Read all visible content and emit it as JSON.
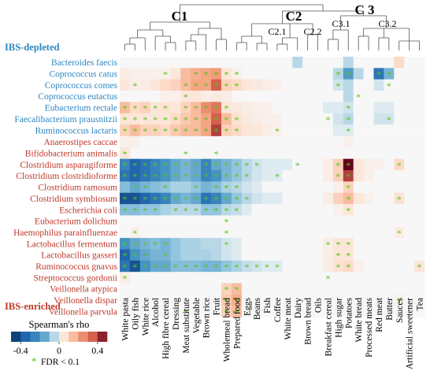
{
  "chart_data": {
    "type": "heatmap",
    "title": "",
    "legend_title": "Spearman's rho",
    "colorbar_ticks": [
      "-0.4",
      "0",
      "0.4"
    ],
    "colorbar_range": [
      -0.5,
      0.5
    ],
    "significance_note": "FDR < 0.1",
    "significance_marker": "*",
    "group_labels": {
      "depleted": "IBS-depleted",
      "enriched": "IBS-enriched"
    },
    "cluster_labels": [
      "C1",
      "C2",
      "C2.1",
      "C2.2",
      "C 3",
      "C3.1",
      "C3.2"
    ],
    "columns": [
      "White pasta",
      "Oily fish",
      "White rice",
      "Alcohol",
      "High fibre cereal",
      "Dressing",
      "Meat substitute",
      "Vegetable",
      "Brown rice",
      "Fruit",
      "Wholemeal bread",
      "Prepared food",
      "Eggs",
      "Beans",
      "Fish",
      "Coffee",
      "White meat",
      "Dairy",
      "Brown bread",
      "Oils",
      "Breakfast cereal",
      "High sugar",
      "Potatoes",
      "White bread",
      "Processed meats",
      "Red meat",
      "Butter",
      "Sauces",
      "Artificial sweetener",
      "Tea"
    ],
    "rows": [
      {
        "name": "Bacteroides faecis",
        "group": "depleted",
        "values": [
          0,
          0,
          0,
          0,
          0,
          0,
          0,
          0,
          0,
          0,
          0,
          0,
          0,
          0,
          0,
          0,
          0,
          -0.05,
          0,
          0,
          0,
          0,
          -0.05,
          0,
          0,
          0,
          0,
          0.08,
          0,
          0
        ],
        "sig": []
      },
      {
        "name": "Coprococcus catus",
        "group": "depleted",
        "values": [
          0.03,
          0.02,
          0.02,
          0.02,
          0.02,
          0.05,
          0.15,
          0.18,
          0.2,
          0.22,
          0.05,
          0.02,
          0,
          0,
          0,
          0,
          0,
          0,
          0,
          0,
          0,
          -0.05,
          -0.18,
          -0.05,
          0,
          -0.3,
          -0.12,
          0,
          0,
          0
        ],
        "sig": [
          4,
          7,
          8,
          9,
          10,
          11,
          21,
          22,
          25,
          26
        ]
      },
      {
        "name": "Coprococcus comes",
        "group": "depleted",
        "values": [
          0.05,
          0.03,
          0.03,
          0.05,
          0.08,
          0.1,
          0.15,
          0.2,
          0.2,
          0.35,
          0.1,
          0.08,
          0.05,
          0.04,
          0.03,
          0.02,
          0,
          0,
          0,
          0,
          0,
          -0.03,
          -0.05,
          0,
          0,
          -0.03,
          0,
          0,
          0,
          0
        ],
        "sig": [
          1,
          6,
          7,
          8,
          9,
          10,
          11,
          21,
          26
        ]
      },
      {
        "name": "Coprococcus eutactus",
        "group": "depleted",
        "values": [
          0,
          0,
          0,
          0,
          0.02,
          0.02,
          0.05,
          0.05,
          0.03,
          0.04,
          0.03,
          0,
          0,
          0,
          0,
          0,
          0,
          0,
          0,
          0,
          0,
          0,
          -0.05,
          0,
          0,
          0,
          0,
          0,
          0,
          0
        ],
        "sig": [
          6,
          23
        ]
      },
      {
        "name": "Eubacterium rectale",
        "group": "depleted",
        "values": [
          0.15,
          0.08,
          0.1,
          0.05,
          0.06,
          0.05,
          0.1,
          0.15,
          0.25,
          0.3,
          0.05,
          0.04,
          0.03,
          0.02,
          0.02,
          0,
          0,
          0,
          0,
          0,
          -0.02,
          -0.02,
          -0.03,
          0,
          0,
          -0.02,
          -0.02,
          0,
          0,
          0
        ],
        "sig": [
          0,
          1,
          2,
          3,
          4,
          6,
          7,
          8,
          9,
          10,
          22
        ]
      },
      {
        "name": "Faecalibacterium prausnitzii",
        "group": "depleted",
        "values": [
          0.05,
          0.05,
          0.05,
          0.05,
          0.05,
          0.08,
          0.12,
          0.15,
          0.2,
          0.35,
          0.15,
          0.06,
          0.04,
          0.03,
          0.02,
          0.02,
          0,
          0,
          0,
          0,
          0,
          -0.03,
          -0.05,
          0,
          0,
          -0.03,
          -0.03,
          0,
          0,
          0
        ],
        "sig": [
          0,
          1,
          2,
          3,
          4,
          5,
          6,
          7,
          8,
          9,
          10,
          11,
          20,
          22,
          26
        ]
      },
      {
        "name": "Ruminococcus lactaris",
        "group": "depleted",
        "values": [
          0.1,
          0.15,
          0.1,
          0.1,
          0.08,
          0.12,
          0.15,
          0.15,
          0.2,
          0.4,
          0.1,
          0.08,
          0.05,
          0.05,
          0.03,
          0.02,
          0,
          0,
          0,
          0,
          0,
          -0.02,
          -0.02,
          0,
          0,
          0,
          0,
          0,
          0,
          0
        ],
        "sig": [
          0,
          1,
          2,
          3,
          4,
          5,
          6,
          7,
          8,
          9,
          10,
          11,
          15,
          22
        ]
      },
      {
        "name": "Anaerostipes caccae",
        "group": "enriched",
        "values": [
          0.02,
          0.02,
          0,
          0,
          0,
          0,
          0,
          0,
          0,
          0,
          0,
          0,
          0,
          0,
          0,
          0,
          0,
          0,
          0,
          0,
          0,
          0,
          0.02,
          0,
          0,
          0,
          0,
          0,
          0,
          0
        ],
        "sig": []
      },
      {
        "name": "Bifidobacterium animalis",
        "group": "enriched",
        "values": [
          0.05,
          0,
          0,
          0,
          0,
          0,
          0,
          0,
          0,
          0,
          0,
          0,
          0,
          0,
          0,
          0,
          0,
          0,
          0,
          0,
          0,
          0,
          0,
          0,
          0,
          0,
          0,
          0,
          0,
          0
        ],
        "sig": [
          0,
          6,
          9
        ]
      },
      {
        "name": "Clostridium asparagiforme",
        "group": "enriched",
        "values": [
          -0.25,
          -0.35,
          -0.3,
          -0.25,
          -0.2,
          -0.15,
          -0.12,
          -0.15,
          -0.25,
          -0.15,
          -0.12,
          -0.08,
          -0.05,
          -0.03,
          -0.02,
          -0.02,
          -0.02,
          0,
          0,
          0,
          0.03,
          0.1,
          0.5,
          0.05,
          0.02,
          0.02,
          0,
          0.08,
          0,
          0
        ],
        "sig": [
          0,
          1,
          2,
          3,
          4,
          5,
          6,
          7,
          8,
          9,
          10,
          11,
          12,
          13,
          17,
          21,
          22,
          27
        ]
      },
      {
        "name": "Clostridium clostridioforme",
        "group": "enriched",
        "values": [
          -0.3,
          -0.35,
          -0.3,
          -0.25,
          -0.2,
          -0.15,
          -0.12,
          -0.15,
          -0.25,
          -0.2,
          -0.12,
          -0.08,
          -0.05,
          -0.03,
          -0.02,
          -0.02,
          0,
          0,
          0,
          0,
          0.03,
          0.1,
          0.4,
          0.05,
          0.02,
          0,
          0,
          0,
          0,
          0
        ],
        "sig": [
          0,
          1,
          2,
          3,
          4,
          5,
          6,
          7,
          8,
          9,
          10,
          11,
          12,
          15,
          21,
          22
        ]
      },
      {
        "name": "Clostridium ramosum",
        "group": "enriched",
        "values": [
          -0.1,
          -0.15,
          -0.12,
          -0.1,
          -0.08,
          -0.06,
          -0.06,
          -0.08,
          -0.12,
          -0.1,
          -0.06,
          -0.05,
          -0.03,
          -0.02,
          0,
          0,
          0,
          0,
          0,
          0,
          0,
          0.02,
          0.1,
          0,
          0,
          0,
          0,
          0,
          0,
          0
        ],
        "sig": [
          1,
          2,
          4,
          7,
          9,
          10,
          11,
          22
        ]
      },
      {
        "name": "Clostridium symbiosum",
        "group": "enriched",
        "values": [
          -0.4,
          -0.4,
          -0.35,
          -0.3,
          -0.25,
          -0.15,
          -0.12,
          -0.15,
          -0.3,
          -0.25,
          -0.15,
          -0.08,
          -0.05,
          -0.03,
          -0.02,
          -0.02,
          0,
          0,
          0,
          0,
          0.03,
          0.1,
          0.15,
          0.05,
          0.02,
          0,
          0,
          0.06,
          0,
          0
        ],
        "sig": [
          0,
          1,
          2,
          3,
          4,
          5,
          6,
          7,
          8,
          9,
          10,
          11,
          12,
          22,
          27
        ]
      },
      {
        "name": "Escherichia coli",
        "group": "enriched",
        "values": [
          -0.1,
          -0.1,
          -0.08,
          -0.08,
          -0.06,
          -0.05,
          -0.05,
          -0.05,
          -0.08,
          -0.08,
          -0.05,
          -0.04,
          -0.02,
          0,
          0,
          0,
          0,
          0,
          0,
          0,
          0,
          0.02,
          0.05,
          0,
          0,
          0,
          0,
          0,
          0,
          0
        ],
        "sig": [
          0,
          1,
          2,
          3,
          5,
          6,
          7,
          8,
          9,
          10,
          11,
          22
        ]
      },
      {
        "name": "Eubacterium dolichum",
        "group": "enriched",
        "values": [
          0,
          0,
          0,
          0,
          0,
          0,
          0,
          0,
          0,
          0,
          0,
          0,
          0,
          0,
          0,
          0,
          0,
          0,
          0,
          0,
          0,
          0,
          0,
          0,
          0,
          0,
          0,
          0,
          0,
          0
        ],
        "sig": [
          10
        ]
      },
      {
        "name": "Haemophilus parainfluenzae",
        "group": "enriched",
        "values": [
          0,
          0.02,
          0,
          0,
          0,
          0,
          0,
          0,
          0,
          0,
          0,
          0,
          0,
          0,
          0,
          0,
          0,
          0,
          0,
          0,
          0,
          0,
          0,
          0,
          0,
          0,
          0,
          0.03,
          0,
          0
        ],
        "sig": [
          1,
          10,
          27
        ]
      },
      {
        "name": "Lactobacillus fermentum",
        "group": "enriched",
        "values": [
          -0.2,
          -0.15,
          -0.12,
          -0.1,
          -0.12,
          -0.08,
          -0.06,
          -0.06,
          -0.05,
          -0.05,
          -0.03,
          -0.02,
          0,
          0,
          0,
          0,
          0,
          0,
          0,
          0,
          0.03,
          0.05,
          0.05,
          0,
          0,
          0,
          0,
          0,
          0,
          0
        ],
        "sig": [
          0,
          1,
          2,
          3,
          4,
          10,
          20,
          21,
          22
        ]
      },
      {
        "name": "Lactobacillus gasseri",
        "group": "enriched",
        "values": [
          -0.35,
          -0.2,
          -0.15,
          -0.12,
          -0.12,
          -0.08,
          -0.06,
          -0.06,
          -0.06,
          -0.05,
          -0.03,
          -0.02,
          0,
          0,
          0,
          0,
          0,
          0,
          0,
          0,
          0.03,
          0.05,
          0.05,
          0,
          0,
          0,
          0,
          0,
          0,
          0
        ],
        "sig": [
          0,
          1,
          2,
          4,
          21,
          22
        ]
      },
      {
        "name": "Ruminococcus gnavus",
        "group": "enriched",
        "values": [
          -0.3,
          -0.4,
          -0.2,
          -0.15,
          -0.15,
          -0.1,
          -0.1,
          -0.1,
          -0.12,
          -0.12,
          -0.08,
          -0.06,
          -0.04,
          -0.03,
          -0.02,
          -0.02,
          0,
          0,
          0,
          0,
          0.03,
          0.06,
          0.08,
          0.02,
          0,
          0,
          0,
          0,
          0,
          0.05
        ],
        "sig": [
          0,
          1,
          2,
          3,
          4,
          5,
          6,
          7,
          8,
          9,
          10,
          11,
          12,
          13,
          14,
          15,
          21,
          22,
          29
        ]
      },
      {
        "name": "Streptococcus gordonii",
        "group": "enriched",
        "values": [
          0.03,
          0,
          0,
          0,
          0,
          0,
          0,
          0,
          0,
          0,
          0,
          0,
          0,
          0,
          0,
          0,
          0,
          0,
          0,
          0,
          0,
          0,
          0,
          0,
          0,
          0,
          0,
          0,
          0,
          0
        ],
        "sig": [
          0,
          20
        ]
      },
      {
        "name": "Veillonella atypica",
        "group": "enriched",
        "values": [
          0,
          0,
          0,
          0,
          0,
          0,
          0,
          0,
          0,
          0,
          0.1,
          0.15,
          0,
          0,
          0,
          0,
          0,
          0,
          0,
          0,
          0,
          0,
          0,
          0,
          0,
          0,
          0,
          0,
          0,
          0
        ],
        "sig": [
          10,
          11
        ]
      },
      {
        "name": "Veillonella dispar",
        "group": "enriched",
        "values": [
          0,
          0,
          0,
          0,
          0,
          0,
          0,
          0,
          0,
          0,
          0.12,
          0.18,
          0,
          0,
          0,
          0,
          0,
          0,
          0,
          0,
          0,
          0,
          0,
          0,
          0,
          0,
          0,
          0.02,
          0,
          0
        ],
        "sig": [
          10,
          11,
          27
        ]
      },
      {
        "name": "Veillonella parvula",
        "group": "enriched",
        "values": [
          0,
          0,
          0,
          0,
          0,
          0,
          0,
          0,
          0,
          0,
          0.1,
          0.15,
          0,
          0,
          0,
          0,
          0,
          0,
          0,
          0,
          0,
          0,
          0,
          0,
          0,
          0,
          0,
          0,
          0,
          0
        ],
        "sig": [
          6,
          10,
          11
        ]
      }
    ],
    "colors": {
      "negative_strong": "#053061",
      "negative_mid": "#4393c3",
      "neutral": "#f7f7f7",
      "positive_mid": "#f4a582",
      "positive_strong": "#67001f",
      "significance": "#5cc21a",
      "depleted_label": "#2e86c1",
      "enriched_label": "#c0392b"
    }
  }
}
